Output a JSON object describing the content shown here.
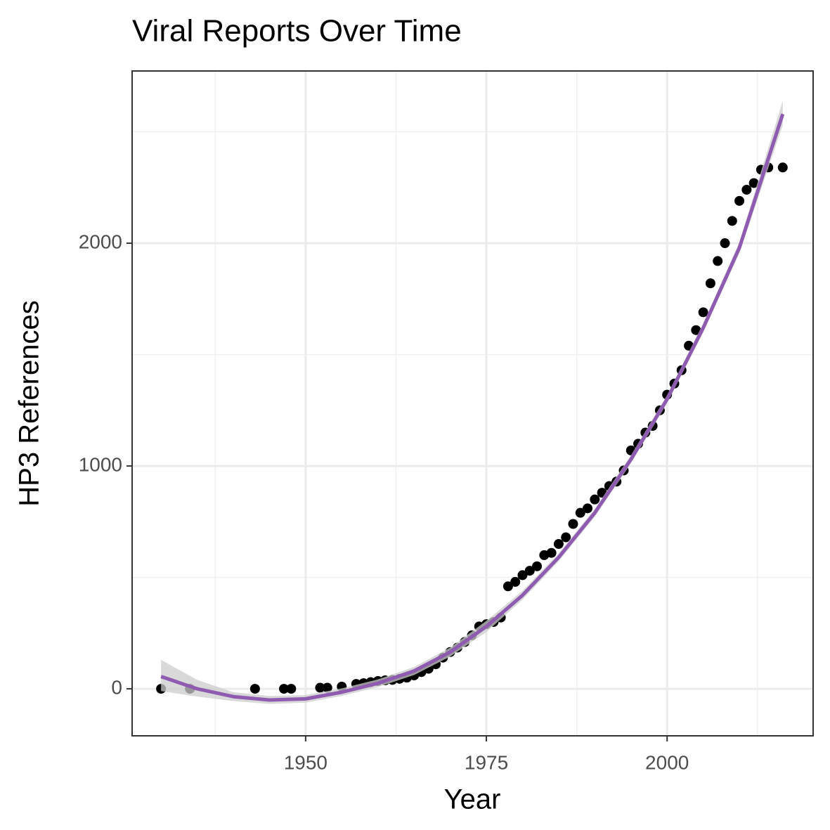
{
  "chart_data": {
    "type": "scatter",
    "title": "Viral Reports Over Time",
    "x_label": "Year",
    "y_label": "HP3 References",
    "xlim": [
      1926,
      2020.2
    ],
    "ylim": [
      -211,
      2773
    ],
    "xticks": [
      1950,
      1975,
      2000
    ],
    "yticks": [
      0,
      1000,
      2000
    ],
    "grid": true,
    "points": {
      "color": "#000000",
      "x": [
        1930,
        1934,
        1943,
        1947,
        1948,
        1952,
        1953,
        1955,
        1957,
        1958,
        1959,
        1960,
        1961,
        1962,
        1963,
        1964,
        1965,
        1966,
        1967,
        1968,
        1969,
        1970,
        1971,
        1972,
        1973,
        1974,
        1975,
        1976,
        1977,
        1978,
        1979,
        1980,
        1981,
        1982,
        1983,
        1984,
        1985,
        1986,
        1987,
        1988,
        1989,
        1990,
        1991,
        1992,
        1993,
        1994,
        1995,
        1996,
        1997,
        1998,
        1999,
        2000,
        2001,
        2002,
        2003,
        2004,
        2005,
        2006,
        2007,
        2008,
        2009,
        2010,
        2011,
        2012,
        2013,
        2014,
        2016
      ],
      "values": [
        0,
        0,
        0,
        0,
        0,
        5,
        5,
        10,
        22,
        25,
        30,
        35,
        38,
        40,
        45,
        50,
        60,
        75,
        90,
        110,
        140,
        165,
        185,
        210,
        240,
        280,
        290,
        300,
        320,
        460,
        480,
        510,
        530,
        550,
        600,
        610,
        650,
        680,
        740,
        790,
        810,
        850,
        880,
        910,
        930,
        980,
        1070,
        1100,
        1150,
        1180,
        1250,
        1320,
        1370,
        1430,
        1540,
        1610,
        1690,
        1820,
        1920,
        2000,
        2100,
        2190,
        2240,
        2270,
        2330,
        2340,
        2340
      ]
    },
    "smooth": {
      "color": "#8e5bb0",
      "band_color": "#cccccc",
      "x": [
        1930,
        1935,
        1940,
        1945,
        1950,
        1955,
        1960,
        1965,
        1970,
        1975,
        1980,
        1985,
        1990,
        1995,
        2000,
        2005,
        2010,
        2016
      ],
      "values": [
        55,
        0,
        -35,
        -50,
        -45,
        -15,
        25,
        80,
        165,
        280,
        420,
        590,
        790,
        1030,
        1300,
        1620,
        1980,
        2580
      ],
      "lower": [
        -10,
        -35,
        -55,
        -68,
        -62,
        -32,
        8,
        62,
        145,
        255,
        400,
        572,
        772,
        1012,
        1282,
        1600,
        1955,
        2530
      ],
      "upper": [
        130,
        40,
        -15,
        -32,
        -28,
        2,
        42,
        98,
        185,
        305,
        440,
        608,
        808,
        1048,
        1318,
        1640,
        2005,
        2640
      ]
    }
  }
}
